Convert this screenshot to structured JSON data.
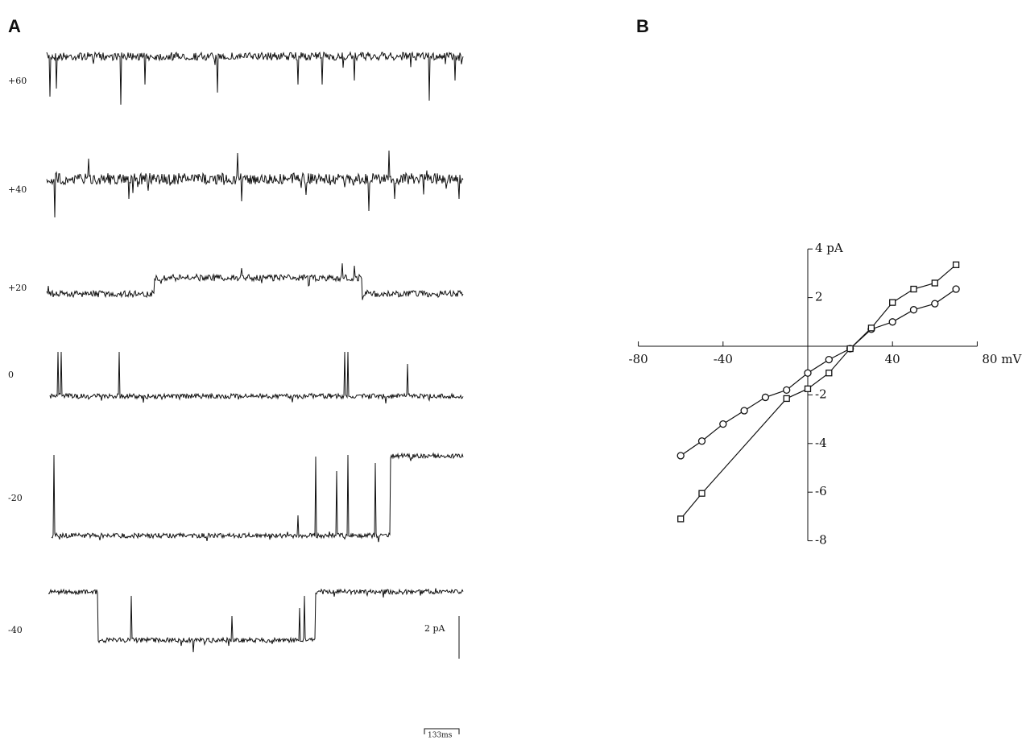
{
  "panel_a": {
    "label": "A",
    "trace_labels": [
      "+60",
      "+40",
      "+20",
      "0",
      "-20",
      "-40"
    ],
    "current_scale": "2 pA",
    "time_scale": "133ms"
  },
  "panel_b": {
    "label": "B"
  },
  "chart_data": {
    "type": "line",
    "xlim": [
      -80,
      80
    ],
    "ylim": [
      -8,
      4
    ],
    "xticks": [
      -80,
      -40,
      40,
      {
        "value": 80,
        "label": "80 mV"
      }
    ],
    "yticks": [
      {
        "value": 4,
        "label": "4 pA"
      },
      2,
      -2,
      -4,
      -6,
      -8
    ],
    "series": [
      {
        "color": "#111",
        "marker": "circle",
        "x": [
          -60,
          -50,
          -40,
          -30,
          -20,
          -10,
          0,
          10,
          20,
          30,
          40,
          50,
          60,
          70
        ],
        "values": [
          -4.5,
          -3.9,
          -3.2,
          -2.65,
          -2.1,
          -1.8,
          -1.1,
          -0.55,
          -0.1,
          0.7,
          1.0,
          1.5,
          1.75,
          2.35
        ]
      },
      {
        "color": "#111",
        "marker": "square",
        "x": [
          -60,
          -50,
          -10,
          0,
          10,
          20,
          30,
          40,
          50,
          60,
          70
        ],
        "values": [
          -7.1,
          -6.05,
          -2.15,
          -1.75,
          -1.1,
          -0.1,
          0.75,
          1.8,
          2.35,
          2.6,
          3.35
        ]
      }
    ]
  }
}
